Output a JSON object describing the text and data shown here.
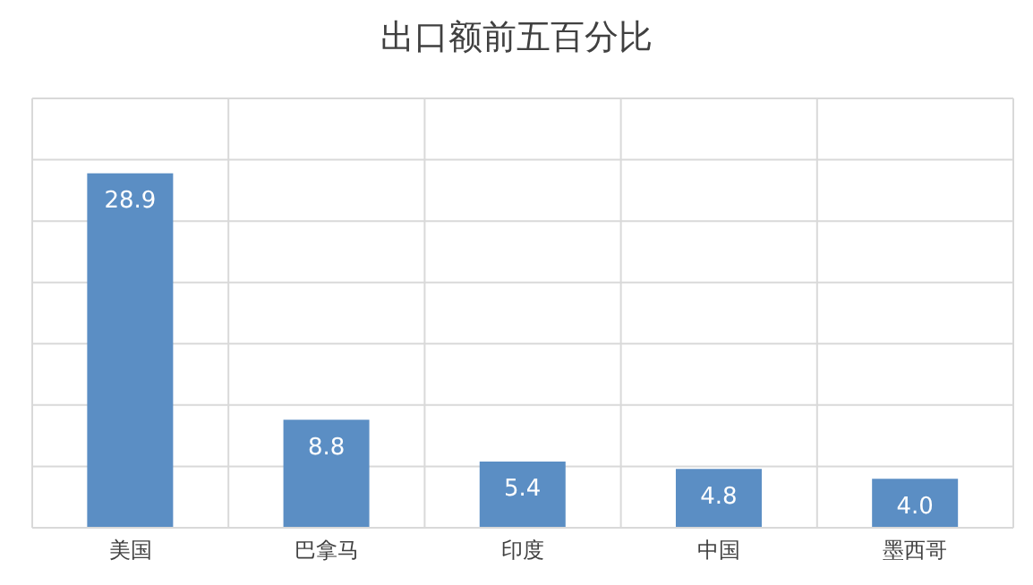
{
  "chart_data": {
    "type": "bar",
    "title": "出口额前五百分比",
    "categories": [
      "美国",
      "巴拿马",
      "印度",
      "中国",
      "墨西哥"
    ],
    "values": [
      28.9,
      8.8,
      5.4,
      4.8,
      4.0
    ],
    "color": "#5b8ec4",
    "ylim": [
      0,
      35
    ],
    "tick_labels": "x",
    "grid": true,
    "value_labels": [
      "28.9",
      "8.8",
      "5.4",
      "4.8",
      "4.0"
    ]
  }
}
